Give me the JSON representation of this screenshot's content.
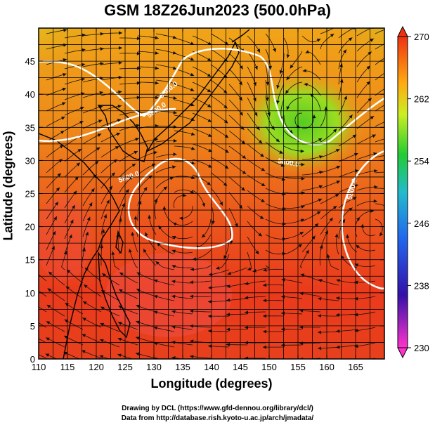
{
  "title": "GSM 18Z26Jun2023 (500.0hPa)",
  "chart_data": {
    "type": "heatmap",
    "title": "GSM 18Z26Jun2023 (500.0hPa)",
    "xlabel": "Longitude (degrees)",
    "ylabel": "Latitude  (degrees)",
    "xlim": [
      110,
      170
    ],
    "ylim": [
      0,
      50
    ],
    "x_ticks": [
      "110",
      "115",
      "120",
      "125",
      "130",
      "135",
      "140",
      "145",
      "150",
      "155",
      "160",
      "165"
    ],
    "y_ticks": [
      "0",
      "5",
      "10",
      "15",
      "20",
      "25",
      "30",
      "35",
      "40",
      "45"
    ],
    "grid": true,
    "colorbar": {
      "ticks": [
        "230",
        "238",
        "246",
        "254",
        "262",
        "270"
      ],
      "range": [
        230,
        270
      ],
      "colors": [
        "#ff33cc",
        "#2222cc",
        "#2299ff",
        "#22cc44",
        "#ccee22",
        "#ff9900",
        "#ee2200"
      ]
    },
    "contour_labels": [
      "5800.0",
      "5800.0",
      "5800.0",
      "5800.0",
      "5800.0"
    ]
  },
  "credits": {
    "line1": "Drawing by DCL (https://www.gfd-dennou.org/library/dcl/)",
    "line2": "Data from http://database.rish.kyoto-u.ac.jp/arch/jmadata/"
  }
}
